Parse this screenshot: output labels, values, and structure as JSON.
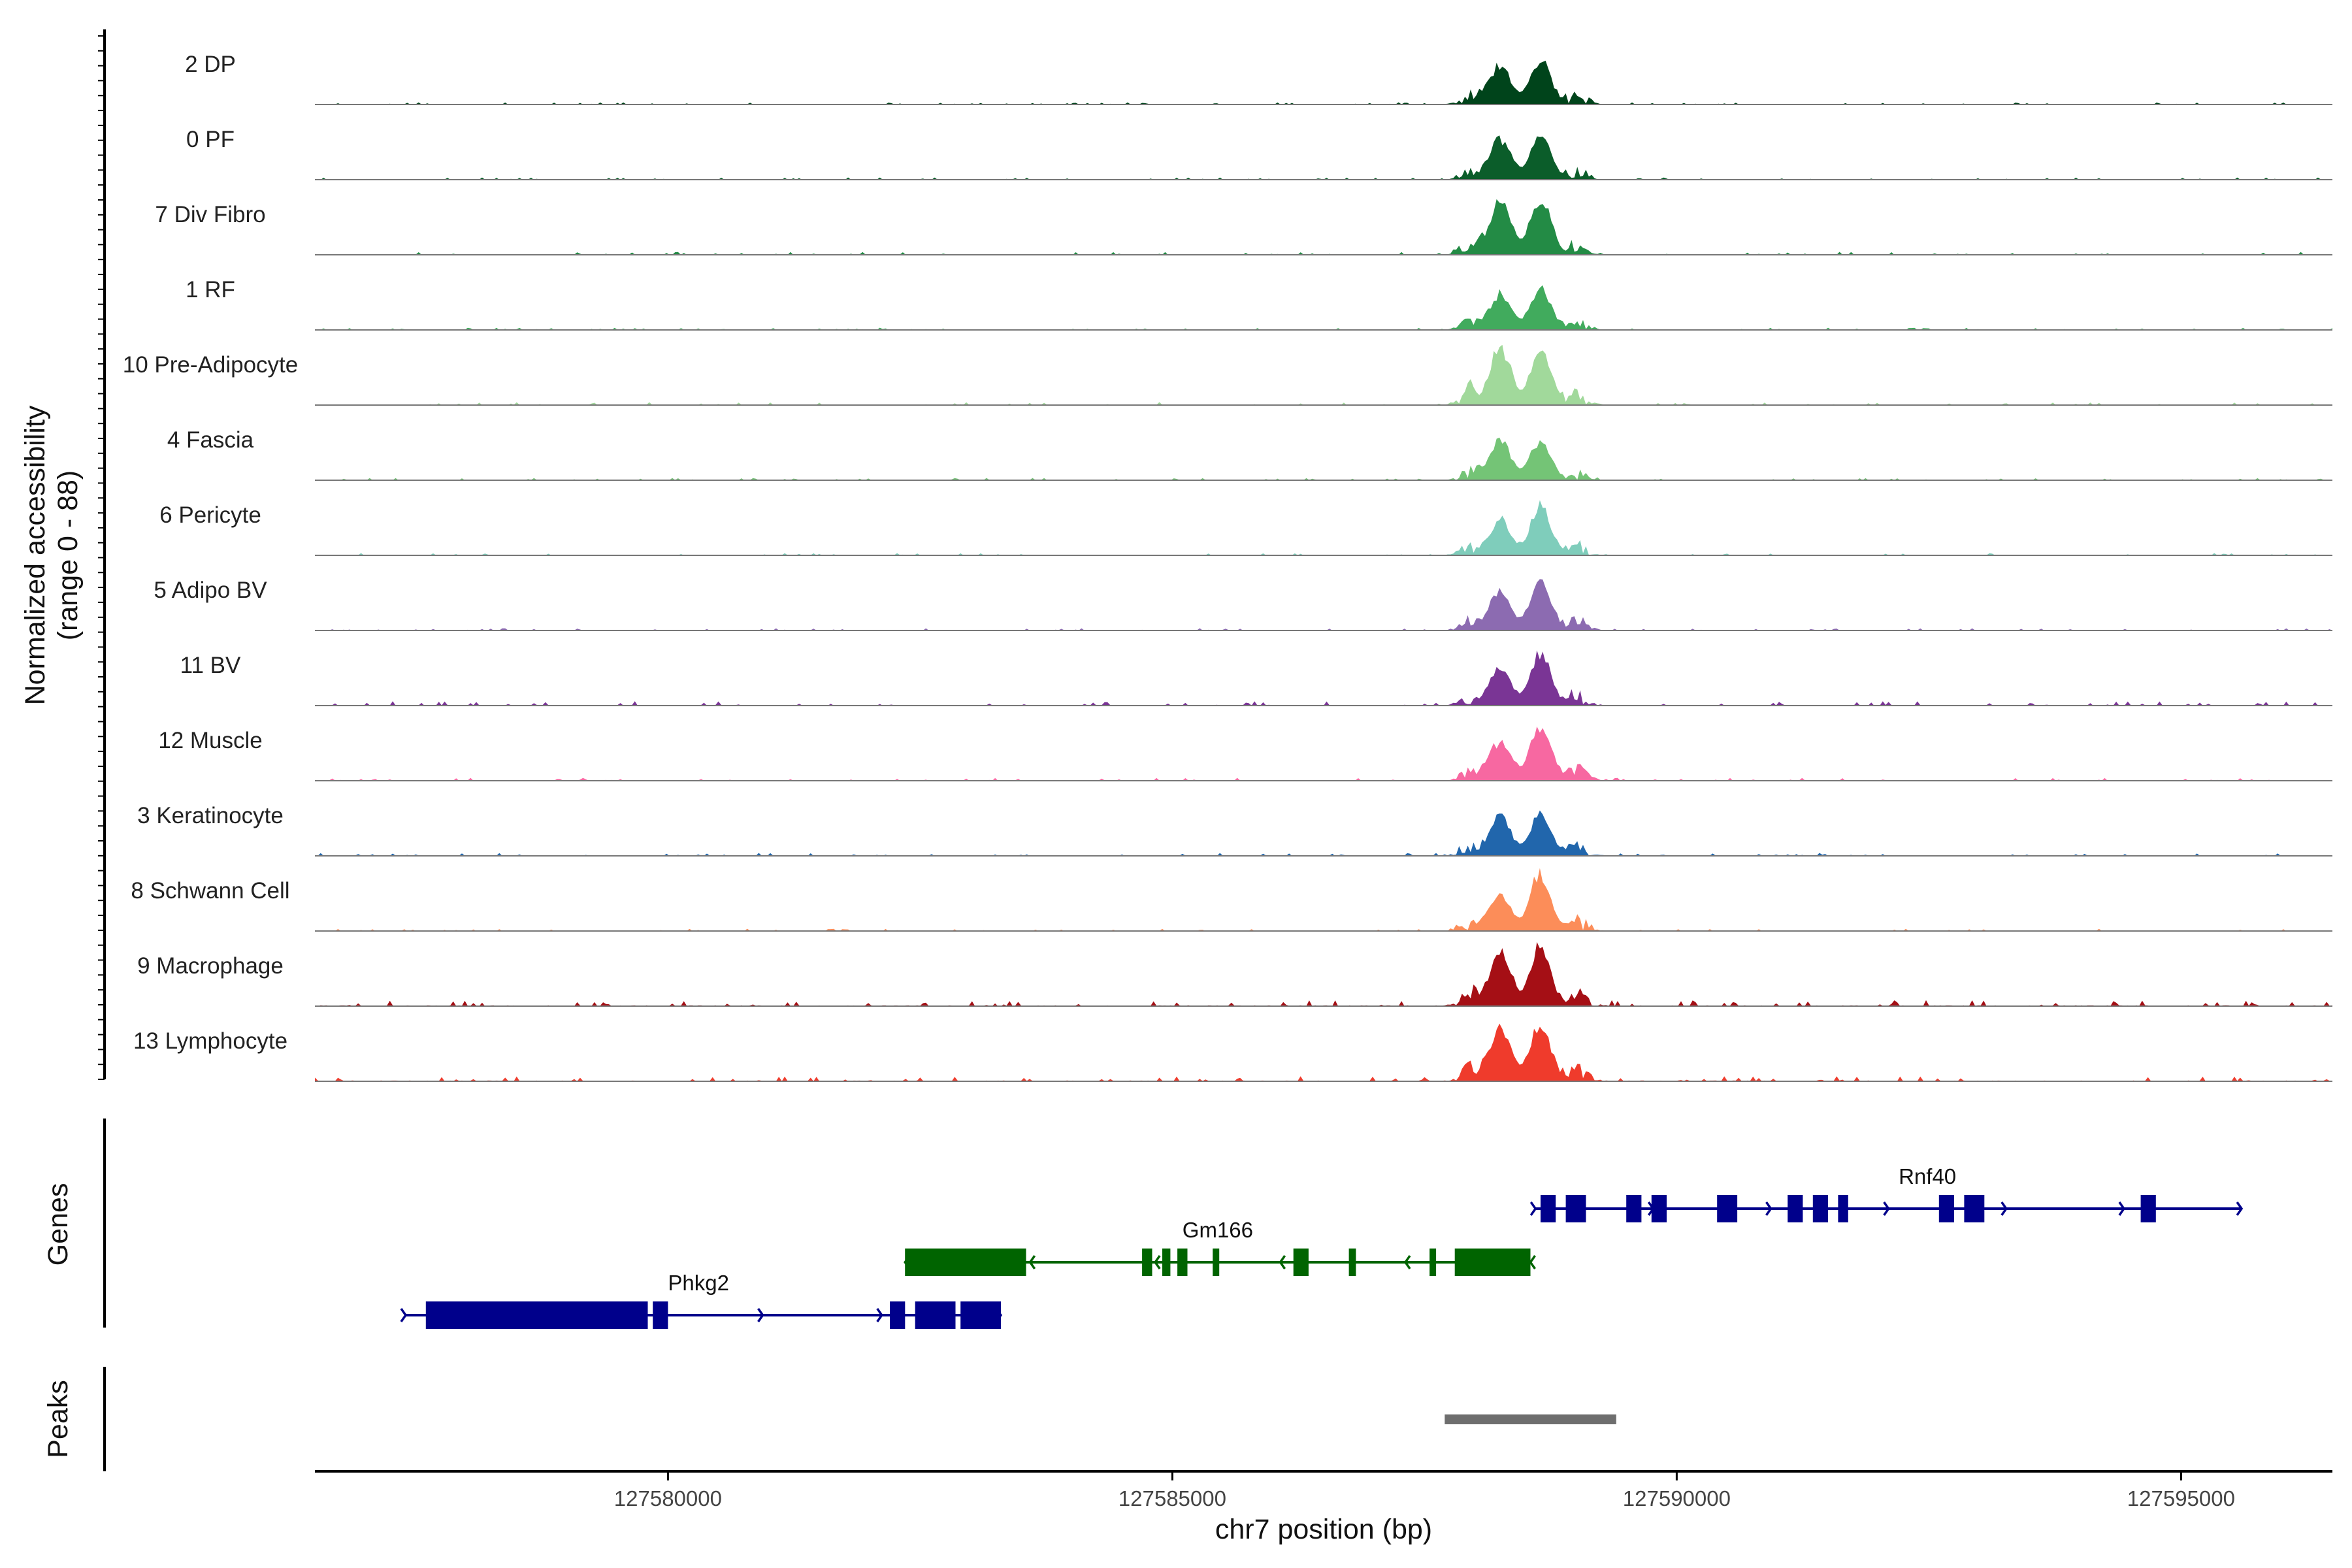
{
  "chart_data": {
    "type": "area",
    "ylabel_line1": "Normalized accessibility",
    "ylabel_line2": "(range 0 - 88)",
    "ylim": [
      0,
      88
    ],
    "xlabel": "chr7 position (bp)",
    "xlim": [
      127576500,
      127596500
    ],
    "xticks": [
      127580000,
      127585000,
      127590000,
      127595000
    ],
    "xtick_labels": [
      "127580000",
      "127585000",
      "127590000",
      "127595000"
    ],
    "tracks": [
      {
        "name": "2 DP",
        "color": "#00441b",
        "peak1": 60,
        "peak2": 68,
        "bg": 3
      },
      {
        "name": "0 PF",
        "color": "#0b5d2a",
        "peak1": 62,
        "peak2": 72,
        "bg": 3
      },
      {
        "name": "7 Div Fibro",
        "color": "#238b45",
        "peak1": 80,
        "peak2": 88,
        "bg": 4
      },
      {
        "name": "1 RF",
        "color": "#41ab5d",
        "peak1": 55,
        "peak2": 62,
        "bg": 3
      },
      {
        "name": "10 Pre-Adipocyte",
        "color": "#a1d99b",
        "peak1": 88,
        "peak2": 80,
        "bg": 4
      },
      {
        "name": "4 Fascia",
        "color": "#74c476",
        "peak1": 60,
        "peak2": 60,
        "bg": 3
      },
      {
        "name": "6 Pericyte",
        "color": "#7fcdbb",
        "peak1": 55,
        "peak2": 75,
        "bg": 3
      },
      {
        "name": "5 Adipo BV",
        "color": "#8c6bb1",
        "peak1": 60,
        "peak2": 80,
        "bg": 3
      },
      {
        "name": "11 BV",
        "color": "#7a3595",
        "peak1": 55,
        "peak2": 80,
        "bg": 6
      },
      {
        "name": "12 Muscle",
        "color": "#f768a1",
        "peak1": 60,
        "peak2": 85,
        "bg": 4
      },
      {
        "name": "3 Keratinocyte",
        "color": "#2166ac",
        "peak1": 60,
        "peak2": 65,
        "bg": 4
      },
      {
        "name": "8 Schwann Cell",
        "color": "#fc8d59",
        "peak1": 55,
        "peak2": 88,
        "bg": 3
      },
      {
        "name": "9 Macrophage",
        "color": "#a50f15",
        "peak1": 80,
        "peak2": 88,
        "bg": 8
      },
      {
        "name": "13 Lymphocyte",
        "color": "#ef3b2c",
        "peak1": 80,
        "peak2": 88,
        "bg": 7
      }
    ],
    "peak_centers_bp": [
      127588250,
      127588650
    ]
  },
  "genes_panel": {
    "title": "Genes",
    "genes": [
      {
        "name": "Rnf40",
        "strand": "+",
        "color": "#00008b",
        "start": 127588600,
        "end": 127595600,
        "row": 0,
        "exons": [
          [
            127588650,
            127588800
          ],
          [
            127588900,
            127589100
          ],
          [
            127589500,
            127589650
          ],
          [
            127589750,
            127589900
          ],
          [
            127590400,
            127590600
          ],
          [
            127591100,
            127591250
          ],
          [
            127591350,
            127591500
          ],
          [
            127591600,
            127591700
          ],
          [
            127592600,
            127592750
          ],
          [
            127592850,
            127593050
          ],
          [
            127594600,
            127594750
          ]
        ]
      },
      {
        "name": "Gm166",
        "strand": "-",
        "color": "#006400",
        "start": 127582350,
        "end": 127588550,
        "row": 1,
        "exons": [
          [
            127582350,
            127583550
          ],
          [
            127584700,
            127584800
          ],
          [
            127584900,
            127584980
          ],
          [
            127585050,
            127585150
          ],
          [
            127585400,
            127585450
          ],
          [
            127586200,
            127586350
          ],
          [
            127586750,
            127586820
          ],
          [
            127587550,
            127587600
          ],
          [
            127587800,
            127588550
          ]
        ]
      },
      {
        "name": "Phkg2",
        "strand": "+",
        "color": "#00008b",
        "start": 127577400,
        "end": 127583300,
        "row": 2,
        "exons": [
          [
            127577600,
            127579800
          ],
          [
            127579850,
            127580000
          ],
          [
            127582200,
            127582350
          ],
          [
            127582450,
            127582850
          ],
          [
            127582900,
            127583300
          ]
        ]
      }
    ]
  },
  "peaks_panel": {
    "title": "Peaks",
    "color": "#6e6e6e",
    "regions": [
      [
        127587700,
        127589400
      ]
    ]
  }
}
